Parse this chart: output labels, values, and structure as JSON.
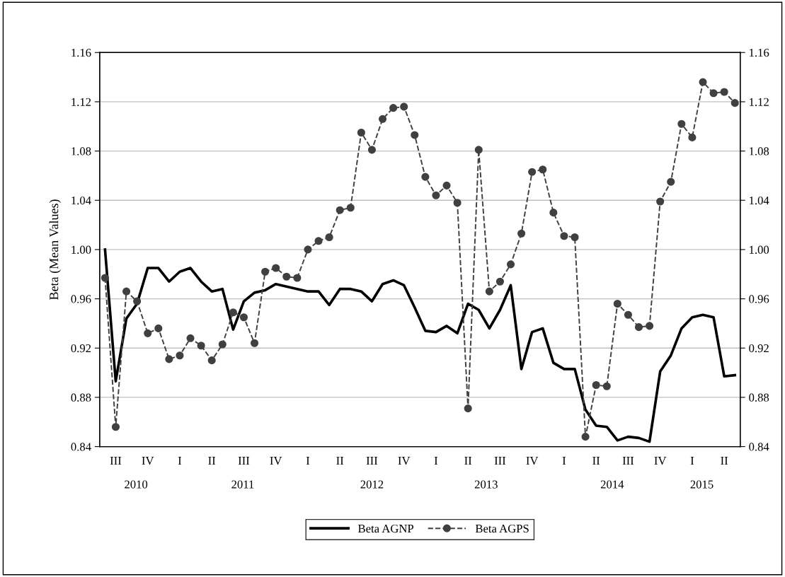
{
  "chart_data": {
    "type": "line",
    "ylabel": "Beta (Mean Values)",
    "categories": [
      null,
      "III",
      null,
      null,
      "IV",
      null,
      null,
      "I",
      null,
      null,
      "II",
      null,
      null,
      "III",
      null,
      null,
      "IV",
      null,
      null,
      "I",
      null,
      null,
      "II",
      null,
      null,
      "III",
      null,
      null,
      "IV",
      null,
      null,
      "I",
      null,
      null,
      "II",
      null,
      null,
      "III",
      null,
      null,
      "IV",
      null,
      null,
      "I",
      null,
      null,
      "II",
      null,
      null,
      "III",
      null,
      null,
      "IV",
      null,
      null,
      "I",
      null,
      null,
      "II",
      null
    ],
    "series": [
      {
        "name": "Beta AGNP",
        "color": "#000000",
        "line_style": "solid",
        "marker": "none",
        "values": [
          1.0,
          0.893,
          0.944,
          0.956,
          0.985,
          0.985,
          0.974,
          0.982,
          0.985,
          0.974,
          0.966,
          0.968,
          0.935,
          0.958,
          0.965,
          0.967,
          0.972,
          0.97,
          0.968,
          0.966,
          0.966,
          0.955,
          0.968,
          0.968,
          0.966,
          0.958,
          0.972,
          0.975,
          0.971,
          0.953,
          0.934,
          0.933,
          0.938,
          0.932,
          0.956,
          0.951,
          0.936,
          0.951,
          0.971,
          0.903,
          0.933,
          0.936,
          0.908,
          0.903,
          0.903,
          0.87,
          0.857,
          0.856,
          0.845,
          0.848,
          0.847,
          0.844,
          0.901,
          0.914,
          0.936,
          0.945,
          0.947,
          0.945,
          0.897,
          0.898
        ]
      },
      {
        "name": "Beta AGPS",
        "color": "#404040",
        "line_style": "dashed",
        "marker": "circle",
        "values": [
          0.977,
          0.856,
          0.966,
          0.958,
          0.932,
          0.936,
          0.911,
          0.914,
          0.928,
          0.922,
          0.91,
          0.923,
          0.949,
          0.945,
          0.924,
          0.982,
          0.985,
          0.978,
          0.977,
          1.0,
          1.007,
          1.01,
          1.032,
          1.034,
          1.095,
          1.081,
          1.106,
          1.115,
          1.116,
          1.093,
          1.059,
          1.044,
          1.052,
          1.038,
          0.871,
          1.081,
          0.966,
          0.974,
          0.988,
          1.013,
          1.063,
          1.065,
          1.03,
          1.011,
          1.01,
          0.848,
          0.89,
          0.889,
          0.956,
          0.947,
          0.937,
          0.938,
          1.039,
          1.055,
          1.102,
          1.091,
          1.136,
          1.127,
          1.128,
          1.119
        ]
      }
    ],
    "annotations": [
      "2010",
      "2011",
      "2012",
      "2013",
      "2014",
      "2015"
    ],
    "ylim": [
      0.84,
      1.16
    ],
    "yticks": [
      0.84,
      0.88,
      0.92,
      0.96,
      {
        "value": 1.0,
        "label": "1.00"
      },
      1.04,
      1.08,
      1.12,
      1.16
    ],
    "y2lim": [
      0.84,
      1.16
    ],
    "y2ticks": [
      0.84,
      0.88,
      0.92,
      0.96,
      {
        "value": 1.0,
        "label": "1.00"
      },
      1.04,
      1.08,
      1.12,
      1.16
    ],
    "grid": "y",
    "legend": "bottom"
  }
}
